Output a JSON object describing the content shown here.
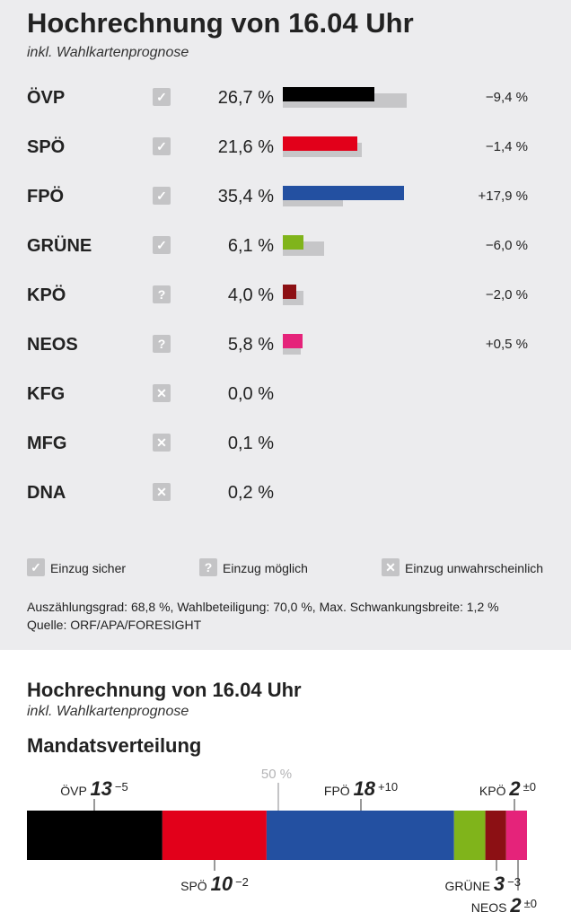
{
  "results": {
    "title": "Hochrechnung von 16.04 Uhr",
    "subtitle": "inkl. Wahlkartenprognose",
    "chart_data": {
      "type": "bar",
      "title": "Hochrechnung von 16.04 Uhr",
      "categories": [
        "ÖVP",
        "SPÖ",
        "FPÖ",
        "GRÜNE",
        "KPÖ",
        "NEOS",
        "KFG",
        "MFG",
        "DNA"
      ],
      "series": [
        {
          "values": [
            26.7,
            21.6,
            35.4,
            6.1,
            4.0,
            5.8,
            0.0,
            0.1,
            0.2
          ]
        },
        {
          "values": [
            36.1,
            23.0,
            17.5,
            12.1,
            6.0,
            5.3,
            null,
            null,
            null
          ]
        }
      ],
      "value_labels": [
        "26,7 %",
        "21,6 %",
        "35,4 %",
        "6,1 %",
        "4,0 %",
        "5,8 %",
        "0,0 %",
        "0,1 %",
        "0,2 %"
      ],
      "delta_labels": [
        "−9,4 %",
        "−1,4 %",
        "+17,9 %",
        "−6,0 %",
        "−2,0 %",
        "+0,5 %",
        "",
        "",
        ""
      ],
      "status": [
        "sicher",
        "sicher",
        "sicher",
        "sicher",
        "moeglich",
        "moeglich",
        "unwahrscheinlich",
        "unwahrscheinlich",
        "unwahrscheinlich"
      ],
      "colors": [
        "#000000",
        "#e2001a",
        "#2350a1",
        "#80b41b",
        "#8c1014",
        "#e5237a",
        "",
        "",
        ""
      ],
      "previous_color": "#c6c6c8",
      "xlim": [
        0,
        40
      ]
    },
    "legend": {
      "sicher": "Einzug sicher",
      "moeglich": "Einzug möglich",
      "unwahrscheinlich": "Einzug unwahrscheinlich"
    },
    "footnote_line1": "Auszählungsgrad: 68,8 %, Wahlbeteiligung: 70,0 %, Max. Schwankungsbreite: 1,2 %",
    "footnote_line2": "Quelle: ORF/APA/FORESIGHT"
  },
  "seats": {
    "title": "Hochrechnung von 16.04 Uhr",
    "subtitle": "inkl. Wahlkartenprognose",
    "heading": "Mandatsverteilung",
    "majority_label": "50 %",
    "chart_data": {
      "type": "bar",
      "title": "Mandatsverteilung",
      "categories": [
        "ÖVP",
        "SPÖ",
        "FPÖ",
        "GRÜNE",
        "KPÖ",
        "NEOS"
      ],
      "values": [
        13,
        10,
        18,
        3,
        2,
        2
      ],
      "changes": [
        "−5",
        "−2",
        "+10",
        "−3",
        "±0",
        "±0"
      ],
      "label_side": [
        "top",
        "bottom",
        "top",
        "bottom",
        "top",
        "bottom"
      ],
      "colors": [
        "#000000",
        "#e2001a",
        "#2350a1",
        "#80b41b",
        "#8c1014",
        "#e5237a"
      ],
      "total": 48
    }
  },
  "icon_glyphs": {
    "sicher": "✓",
    "moeglich": "?",
    "unwahrscheinlich": "✕"
  },
  "theme": {
    "background_top": "#ececee",
    "status_icon_color": "#c4c4c6",
    "majority_line_color": "#c4c4c6"
  }
}
